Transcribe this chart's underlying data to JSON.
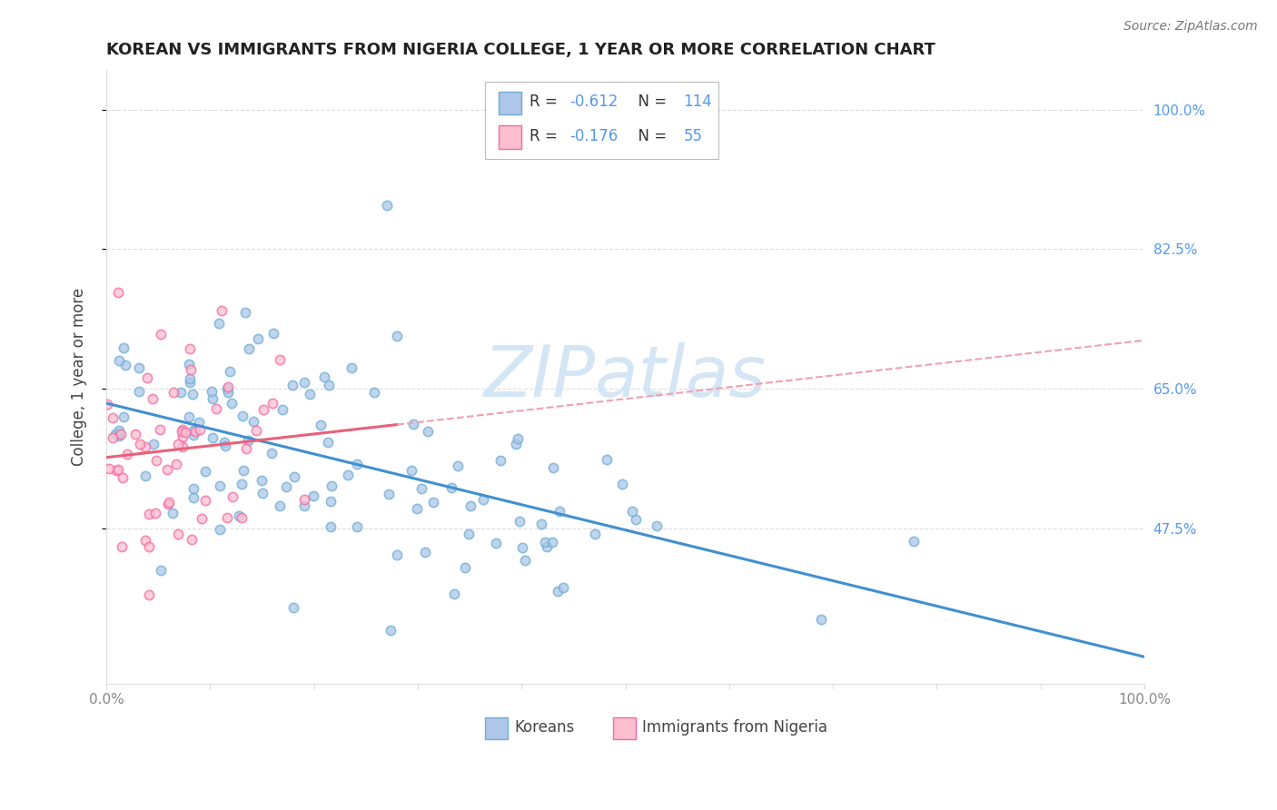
{
  "title": "KOREAN VS IMMIGRANTS FROM NIGERIA COLLEGE, 1 YEAR OR MORE CORRELATION CHART",
  "source_text": "Source: ZipAtlas.com",
  "ylabel": "College, 1 year or more",
  "xlim": [
    0.0,
    1.0
  ],
  "ylim": [
    0.28,
    1.05
  ],
  "ytick_values": [
    0.475,
    0.65,
    0.825,
    1.0
  ],
  "ytick_right_labels": [
    "47.5%",
    "65.0%",
    "82.5%",
    "100.0%"
  ],
  "xtick_positions": [
    0.0,
    0.1,
    0.2,
    0.3,
    0.4,
    0.5,
    0.6,
    0.7,
    0.8,
    0.9,
    1.0
  ],
  "xtick_labels": [
    "0.0%",
    "",
    "",
    "",
    "",
    "",
    "",
    "",
    "",
    "",
    "100.0%"
  ],
  "legend_r1": "R = -0.612",
  "legend_n1": "N = 114",
  "legend_r2": "R = -0.176",
  "legend_n2": "N = 55",
  "color_korean_fill": "#aec6e8",
  "color_korean_edge": "#6baed6",
  "color_nigeria_fill": "#fbbfcf",
  "color_nigeria_edge": "#f768a1",
  "color_line_korean": "#4090d0",
  "color_line_nigeria": "#e8607a",
  "color_line_nigeria_dashed": "#f0a0b0",
  "watermark_text": "ZIPatlas",
  "watermark_color": "#d0e4f4",
  "label_koreans": "Koreans",
  "label_nigeria": "Immigrants from Nigeria",
  "background_color": "#ffffff",
  "grid_color": "#dddddd",
  "right_axis_color": "#5599ee",
  "title_color": "#222222",
  "source_color": "#777777",
  "axis_label_color": "#444444",
  "tick_color": "#888888"
}
